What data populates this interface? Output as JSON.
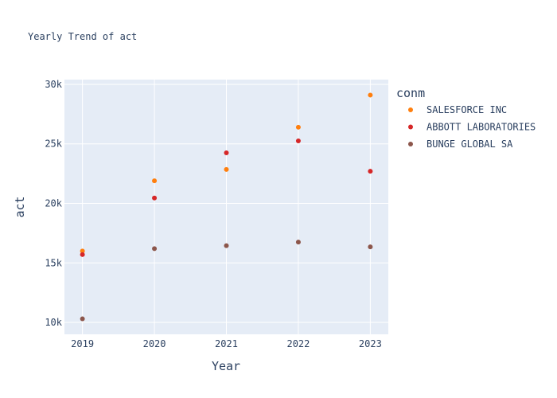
{
  "chart_data": {
    "type": "scatter",
    "title": "Yearly Trend of act",
    "xlabel": "Year",
    "ylabel": "act",
    "legend_title": "conm",
    "legend_position": "right",
    "grid": true,
    "x": [
      2019,
      2020,
      2021,
      2022,
      2023
    ],
    "x_tick_labels": [
      "2019",
      "2020",
      "2021",
      "2022",
      "2023"
    ],
    "xlim": [
      2018.75,
      2023.25
    ],
    "y_ticks": [
      10000,
      15000,
      20000,
      25000,
      30000
    ],
    "y_tick_labels": [
      "10k",
      "15k",
      "20k",
      "25k",
      "30k"
    ],
    "ylim": [
      9000,
      30400
    ],
    "colors": {
      "plot_bg": "#e5ecf6",
      "grid": "#ffffff",
      "text": "#2a3f5f"
    },
    "series": [
      {
        "name": "SALESFORCE INC",
        "color": "#ff7f0e",
        "values": [
          16000,
          21900,
          22850,
          26400,
          29100
        ]
      },
      {
        "name": "ABBOTT LABORATORIES",
        "color": "#d62728",
        "values": [
          15700,
          20450,
          24250,
          25250,
          22700
        ]
      },
      {
        "name": "BUNGE GLOBAL SA",
        "color": "#8c564b",
        "values": [
          10300,
          16200,
          16450,
          16750,
          16350
        ]
      }
    ]
  }
}
